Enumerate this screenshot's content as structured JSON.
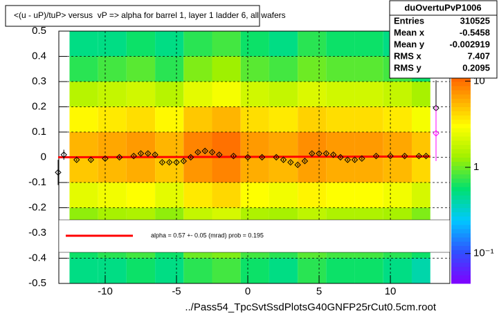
{
  "chart_data": {
    "type": "heatmap",
    "title": "<(u - uP)/tuP> versus  vP => alpha for barrel 1, layer 1 ladder 6, all wafers",
    "x_label": "../Pass54_TpcSvtSsdPlotsG40GNFP25rCut0.5cm.root",
    "xlim": [
      -13.25,
      14.17
    ],
    "ylim": [
      -0.5,
      0.5
    ],
    "xticks": [
      -10,
      -5,
      0,
      5,
      10
    ],
    "yticks": [
      -0.5,
      -0.4,
      -0.3,
      -0.2,
      -0.1,
      0,
      0.1,
      0.2,
      0.3,
      0.4,
      0.5
    ],
    "grid": true,
    "x_edges": [
      -12.5,
      -10.5,
      -8.5,
      -6.5,
      -4.5,
      -2.5,
      -0.5,
      1.5,
      3.5,
      5.5,
      7.5,
      9.5,
      11.5,
      12.8
    ],
    "y_edges": [
      -0.5,
      -0.4,
      -0.3,
      -0.2,
      -0.1,
      0,
      0.1,
      0.2,
      0.3,
      0.4,
      0.5
    ],
    "z": [
      [
        0.5,
        0.5,
        0.6,
        0.5,
        0.7,
        0.8,
        0.6,
        0.5,
        0.7,
        0.6,
        0.6,
        0.5,
        0.4
      ],
      [
        0.6,
        0.7,
        0.8,
        0.6,
        1,
        1.1,
        0.8,
        0.7,
        0.9,
        0.8,
        0.8,
        0.7,
        0.6
      ],
      [
        1.2,
        1.4,
        1.5,
        1.2,
        1.8,
        2.1,
        1.5,
        1.4,
        1.7,
        1.5,
        1.5,
        1.4,
        1.1
      ],
      [
        2.4,
        2.7,
        3,
        2.4,
        3.6,
        4.2,
        3,
        2.7,
        3.3,
        3,
        3,
        2.7,
        2.1
      ],
      [
        4.8,
        5.4,
        6,
        4.8,
        7.2,
        8.4,
        6,
        5.4,
        6.6,
        6,
        6,
        5.4,
        4.2
      ],
      [
        5.6,
        6.3,
        7,
        5.6,
        8.4,
        9.8,
        7,
        6.3,
        7.7,
        7,
        7,
        6.3,
        4.9
      ],
      [
        3.2,
        3.6,
        4,
        3.2,
        4.8,
        5.6,
        4,
        3.6,
        4.4,
        4,
        4,
        3.6,
        2.8
      ],
      [
        1.6,
        1.8,
        2,
        1.6,
        2.4,
        2.8,
        2,
        1.8,
        2.2,
        2,
        2,
        1.8,
        1.4
      ],
      [
        0.7,
        0.8,
        0.9,
        0.7,
        1.1,
        1.3,
        0.9,
        0.8,
        1,
        0.9,
        0.9,
        0.8,
        0.6
      ],
      [
        0.5,
        0.5,
        0.6,
        0.5,
        0.7,
        0.8,
        0.6,
        0.5,
        0.7,
        0.6,
        0.6,
        0.5,
        0.4
      ]
    ],
    "zlim": [
      0.045,
      38
    ],
    "zlog": true,
    "zticks": [
      {
        "value": 10,
        "label": "10"
      },
      {
        "value": 1,
        "label": "1"
      },
      {
        "value": 0.1,
        "label": "10⁻¹"
      }
    ],
    "palette": [
      "#8000ff",
      "#3050ff",
      "#00c8ff",
      "#00e070",
      "#a0f000",
      "#ffff00",
      "#ff9900",
      "#ff3300",
      "#cc0000"
    ],
    "profiles": [
      {
        "color": "#000000",
        "x": [
          -13.3,
          -12.9,
          -12,
          -11,
          -10,
          -9,
          -8,
          -7.5,
          -7,
          -6.5,
          -6,
          -5.5,
          -5,
          -4.5,
          -4,
          -3.5,
          -3,
          -2.5,
          -2,
          -1,
          0,
          1,
          2,
          2.5,
          3,
          3.5,
          4,
          4.5,
          5,
          5.5,
          6,
          6.5,
          7,
          7.5,
          8,
          9,
          10,
          11,
          12,
          12.5,
          13.2
        ],
        "values": [
          -0.06,
          0.01,
          -0.01,
          -0.01,
          -0.005,
          0,
          0.005,
          0.015,
          0.015,
          0.01,
          -0.02,
          -0.02,
          -0.02,
          -0.015,
          0,
          0.02,
          0.025,
          0.02,
          0.01,
          0.005,
          0,
          0,
          0,
          -0.01,
          -0.02,
          -0.03,
          -0.015,
          0.015,
          0.015,
          0.015,
          0.01,
          0,
          -0.01,
          -0.01,
          -0.005,
          0.005,
          0.005,
          0.005,
          0.005,
          0.005,
          0.195
        ],
        "errors": [
          0.05,
          0.02,
          0.005,
          0.005,
          0.005,
          0.005,
          0.005,
          0.005,
          0.005,
          0.005,
          0.005,
          0.005,
          0.005,
          0.005,
          0.005,
          0.005,
          0.005,
          0.005,
          0.005,
          0.005,
          0.005,
          0.005,
          0.005,
          0.005,
          0.005,
          0.005,
          0.005,
          0.005,
          0.005,
          0.005,
          0.005,
          0.005,
          0.005,
          0.005,
          0.005,
          0.005,
          0.005,
          0.005,
          0.005,
          0.005,
          0.11
        ]
      },
      {
        "color": "#ff00ff",
        "x": [
          13.2
        ],
        "values": [
          0.095
        ],
        "errors": [
          0.11
        ]
      }
    ],
    "fit": {
      "color": "#ff0000",
      "x": [
        -13.3,
        12.8
      ],
      "values": [
        0,
        0.003
      ]
    },
    "fit_label": "alpha =     0.57 +-  0.05 (mrad) prob = 0.195",
    "stats": {
      "title": "duOvertuPvP1006",
      "rows": [
        {
          "label": "Entries",
          "value": 310525
        },
        {
          "label": "Mean x",
          "value": -0.5458
        },
        {
          "label": "Mean y",
          "value": -0.002919
        },
        {
          "label": "RMS x",
          "value": 7.407
        },
        {
          "label": "RMS y",
          "value": 0.2095
        }
      ]
    }
  }
}
